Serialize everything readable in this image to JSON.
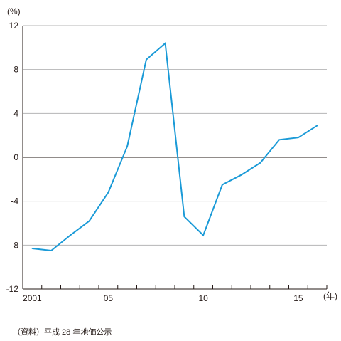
{
  "chart_data": {
    "type": "line",
    "title": "",
    "xlabel": "",
    "ylabel": "",
    "y_unit": "(%)",
    "x_unit": "(年)",
    "xlim": [
      2001,
      2016
    ],
    "ylim": [
      -12,
      12
    ],
    "yticks": [
      12,
      8,
      4,
      0,
      -4,
      -8,
      -12
    ],
    "ytick_labels": [
      "12",
      "8",
      "4",
      "0",
      "-4",
      "-8",
      "-12"
    ],
    "xticks": [
      2001,
      2005,
      2010,
      2015
    ],
    "xtick_labels": [
      "2001",
      "05",
      "10",
      "15"
    ],
    "grid": "horizontal",
    "series": [
      {
        "color": "#1a9ad7",
        "x": [
          2001,
          2002,
          2003,
          2004,
          2005,
          2006,
          2007,
          2008,
          2009,
          2010,
          2011,
          2012,
          2013,
          2014,
          2015,
          2016
        ],
        "y": [
          -8.3,
          -8.5,
          -7.1,
          -5.8,
          -3.2,
          1.0,
          8.9,
          10.4,
          -5.4,
          -7.1,
          -2.5,
          -1.6,
          -0.5,
          1.6,
          1.8,
          2.9
        ]
      }
    ]
  },
  "source_note": "（資料）平成 28 年地価公示"
}
